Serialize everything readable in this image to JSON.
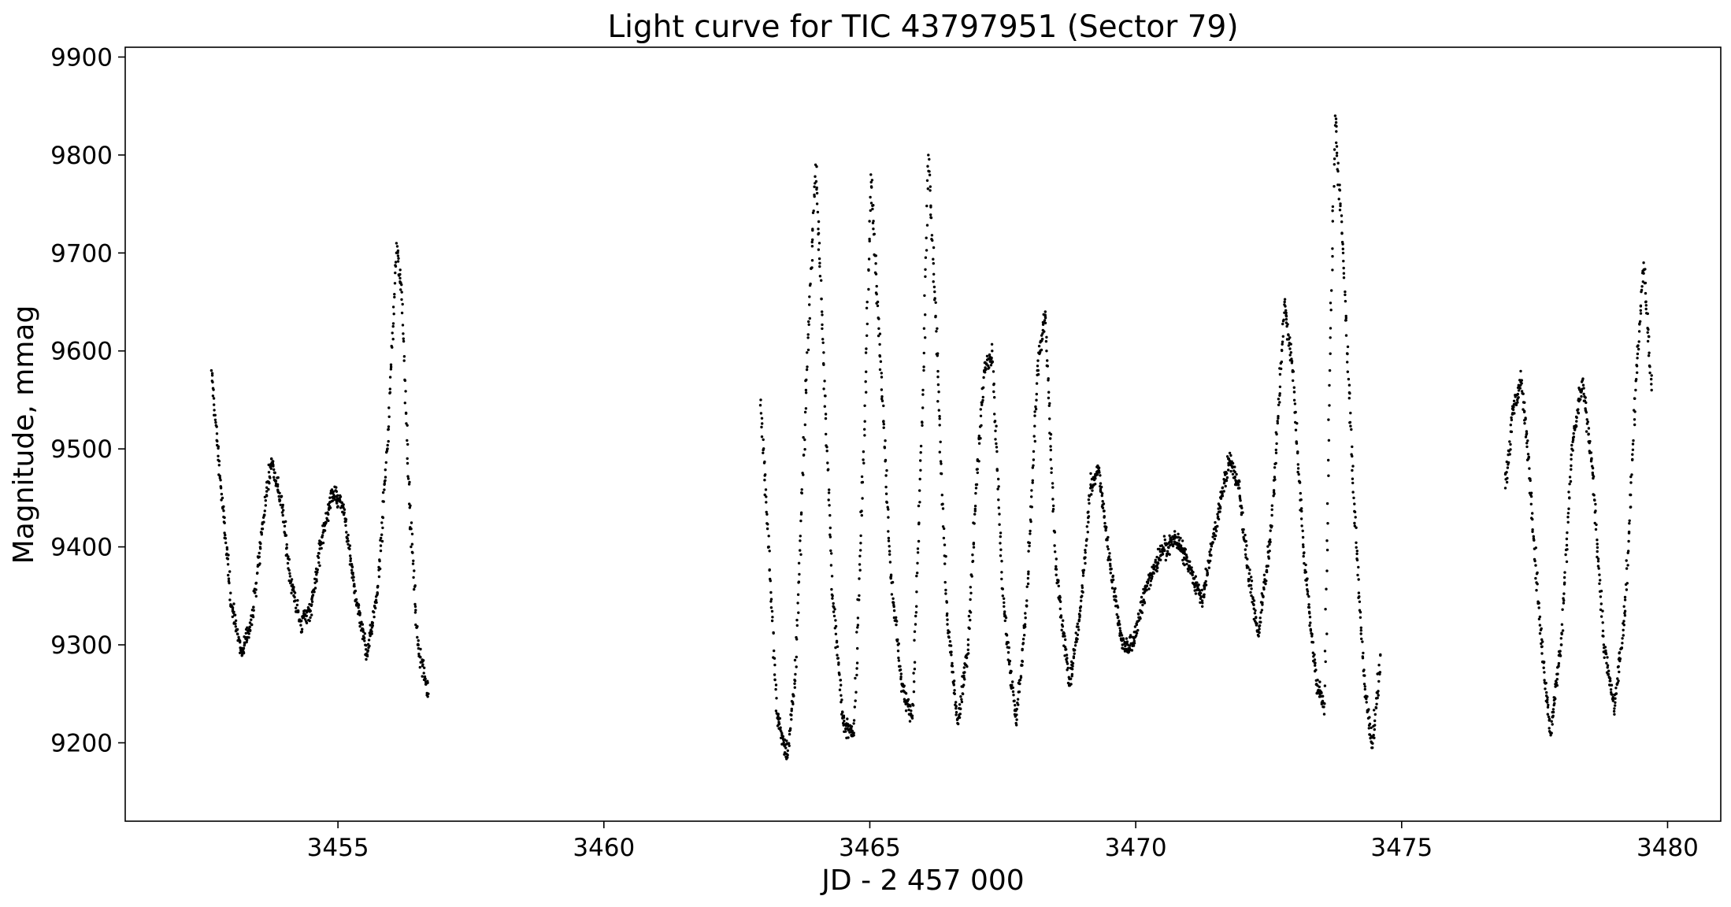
{
  "chart_data": {
    "type": "scatter",
    "title": "Light curve for TIC 43797951 (Sector 79)",
    "xlabel": "JD - 2 457 000",
    "ylabel": "Magnitude, mmag",
    "xlim": [
      3451.0,
      3481.0
    ],
    "ylim": [
      9120,
      9910
    ],
    "xticks": [
      3455,
      3460,
      3465,
      3470,
      3475,
      3480
    ],
    "xtick_labels": [
      "3455",
      "3460",
      "3465",
      "3470",
      "3475",
      "3480"
    ],
    "yticks": [
      9200,
      9300,
      9400,
      9500,
      9600,
      9700,
      9800,
      9900
    ],
    "ytick_labels": [
      "9200",
      "9300",
      "9400",
      "9500",
      "9600",
      "9700",
      "9800",
      "9900"
    ],
    "grid": false,
    "marker_color": "#000000",
    "series": [
      {
        "points": [
          [
            3452.62,
            9580
          ],
          [
            3452.8,
            9460
          ],
          [
            3453.0,
            9340
          ],
          [
            3453.2,
            9290
          ],
          [
            3453.4,
            9330
          ],
          [
            3453.6,
            9430
          ],
          [
            3453.75,
            9490
          ],
          [
            3453.95,
            9440
          ],
          [
            3454.1,
            9370
          ],
          [
            3454.3,
            9320
          ],
          [
            3454.5,
            9340
          ],
          [
            3454.7,
            9410
          ],
          [
            3454.9,
            9455
          ],
          [
            3455.1,
            9440
          ],
          [
            3455.3,
            9360
          ],
          [
            3455.55,
            9290
          ],
          [
            3455.75,
            9360
          ],
          [
            3455.95,
            9520
          ],
          [
            3456.1,
            9710
          ],
          [
            3456.2,
            9660
          ],
          [
            3456.35,
            9440
          ],
          [
            3456.5,
            9300
          ],
          [
            3456.7,
            9250
          ],
          [
            3462.95,
            9550
          ],
          [
            3463.1,
            9400
          ],
          [
            3463.25,
            9230
          ],
          [
            3463.45,
            9185
          ],
          [
            3463.6,
            9270
          ],
          [
            3463.8,
            9560
          ],
          [
            3463.98,
            9790
          ],
          [
            3464.1,
            9640
          ],
          [
            3464.3,
            9350
          ],
          [
            3464.5,
            9220
          ],
          [
            3464.7,
            9210
          ],
          [
            3464.9,
            9520
          ],
          [
            3465.02,
            9780
          ],
          [
            3465.15,
            9650
          ],
          [
            3465.4,
            9370
          ],
          [
            3465.6,
            9260
          ],
          [
            3465.8,
            9225
          ],
          [
            3466.0,
            9560
          ],
          [
            3466.1,
            9800
          ],
          [
            3466.25,
            9620
          ],
          [
            3466.45,
            9330
          ],
          [
            3466.65,
            9220
          ],
          [
            3466.85,
            9300
          ],
          [
            3467.0,
            9460
          ],
          [
            3467.15,
            9580
          ],
          [
            3467.3,
            9600
          ],
          [
            3467.5,
            9350
          ],
          [
            3467.75,
            9220
          ],
          [
            3467.95,
            9340
          ],
          [
            3468.15,
            9580
          ],
          [
            3468.3,
            9640
          ],
          [
            3468.5,
            9380
          ],
          [
            3468.75,
            9260
          ],
          [
            3468.95,
            9330
          ],
          [
            3469.15,
            9460
          ],
          [
            3469.3,
            9480
          ],
          [
            3469.5,
            9390
          ],
          [
            3469.75,
            9300
          ],
          [
            3469.95,
            9300
          ],
          [
            3470.2,
            9360
          ],
          [
            3470.5,
            9395
          ],
          [
            3470.75,
            9410
          ],
          [
            3471.0,
            9380
          ],
          [
            3471.25,
            9345
          ],
          [
            3471.5,
            9420
          ],
          [
            3471.75,
            9490
          ],
          [
            3471.95,
            9460
          ],
          [
            3472.1,
            9380
          ],
          [
            3472.3,
            9310
          ],
          [
            3472.55,
            9420
          ],
          [
            3472.8,
            9650
          ],
          [
            3472.95,
            9580
          ],
          [
            3473.15,
            9400
          ],
          [
            3473.4,
            9260
          ],
          [
            3473.55,
            9240
          ],
          [
            3473.65,
            9580
          ],
          [
            3473.75,
            9840
          ],
          [
            3473.9,
            9700
          ],
          [
            3474.1,
            9450
          ],
          [
            3474.3,
            9260
          ],
          [
            3474.45,
            9195
          ],
          [
            3474.6,
            9290
          ],
          [
            3476.95,
            9460
          ],
          [
            3477.1,
            9540
          ],
          [
            3477.25,
            9570
          ],
          [
            3477.4,
            9480
          ],
          [
            3477.6,
            9320
          ],
          [
            3477.8,
            9210
          ],
          [
            3478.0,
            9300
          ],
          [
            3478.2,
            9500
          ],
          [
            3478.4,
            9570
          ],
          [
            3478.6,
            9470
          ],
          [
            3478.8,
            9300
          ],
          [
            3479.0,
            9235
          ],
          [
            3479.2,
            9330
          ],
          [
            3479.4,
            9560
          ],
          [
            3479.55,
            9690
          ],
          [
            3479.7,
            9560
          ]
        ]
      }
    ]
  }
}
